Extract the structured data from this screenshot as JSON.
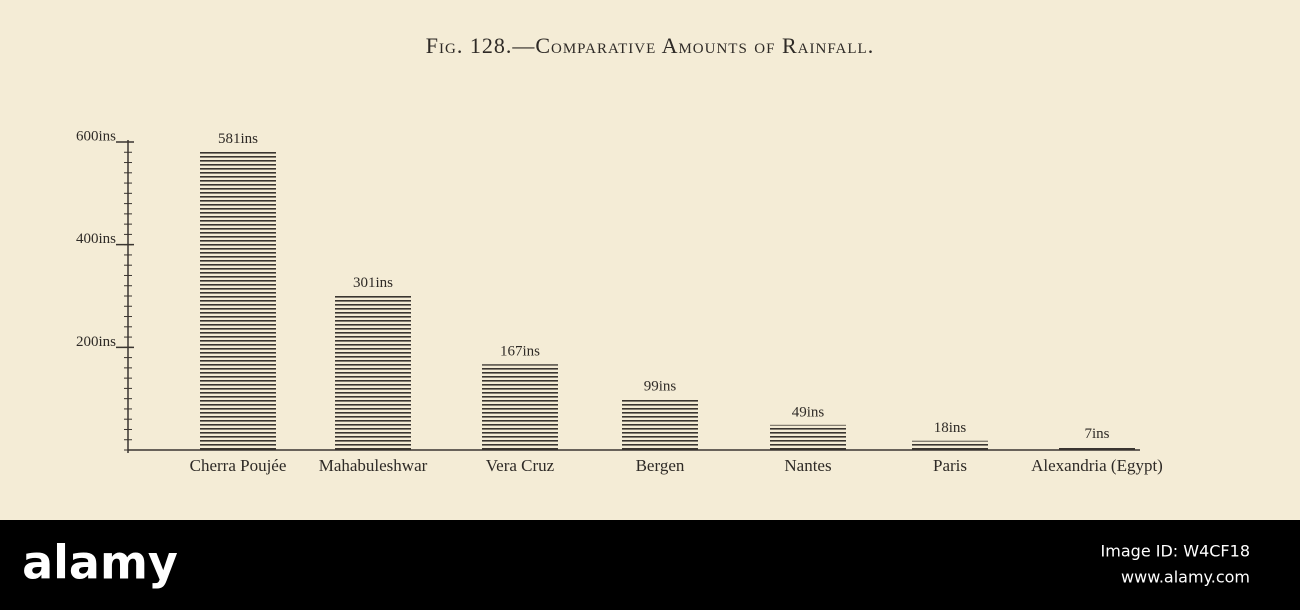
{
  "chart_data": {
    "type": "bar",
    "title": "Fig. 128.—Comparative Amounts of Rainfall.",
    "categories": [
      "Cherra Poujée",
      "Mahabuleshwar",
      "Vera Cruz",
      "Bergen",
      "Nantes",
      "Paris",
      "Alexandria (Egypt)"
    ],
    "values": [
      581,
      301,
      167,
      99,
      49,
      18,
      7
    ],
    "value_labels": [
      "581ins",
      "301ins",
      "167ins",
      "99ins",
      "49ins",
      "18ins",
      "7ins"
    ],
    "color": "#3a3530",
    "ylim": [
      0,
      600
    ],
    "yticks": [
      {
        "value": 200,
        "label": "200ins"
      },
      {
        "value": 400,
        "label": "400ins"
      },
      {
        "value": 600,
        "label": "600ins"
      }
    ]
  },
  "watermark": {
    "brand": "alamy",
    "image_id": "Image ID: W4CF18",
    "url": "www.alamy.com"
  }
}
